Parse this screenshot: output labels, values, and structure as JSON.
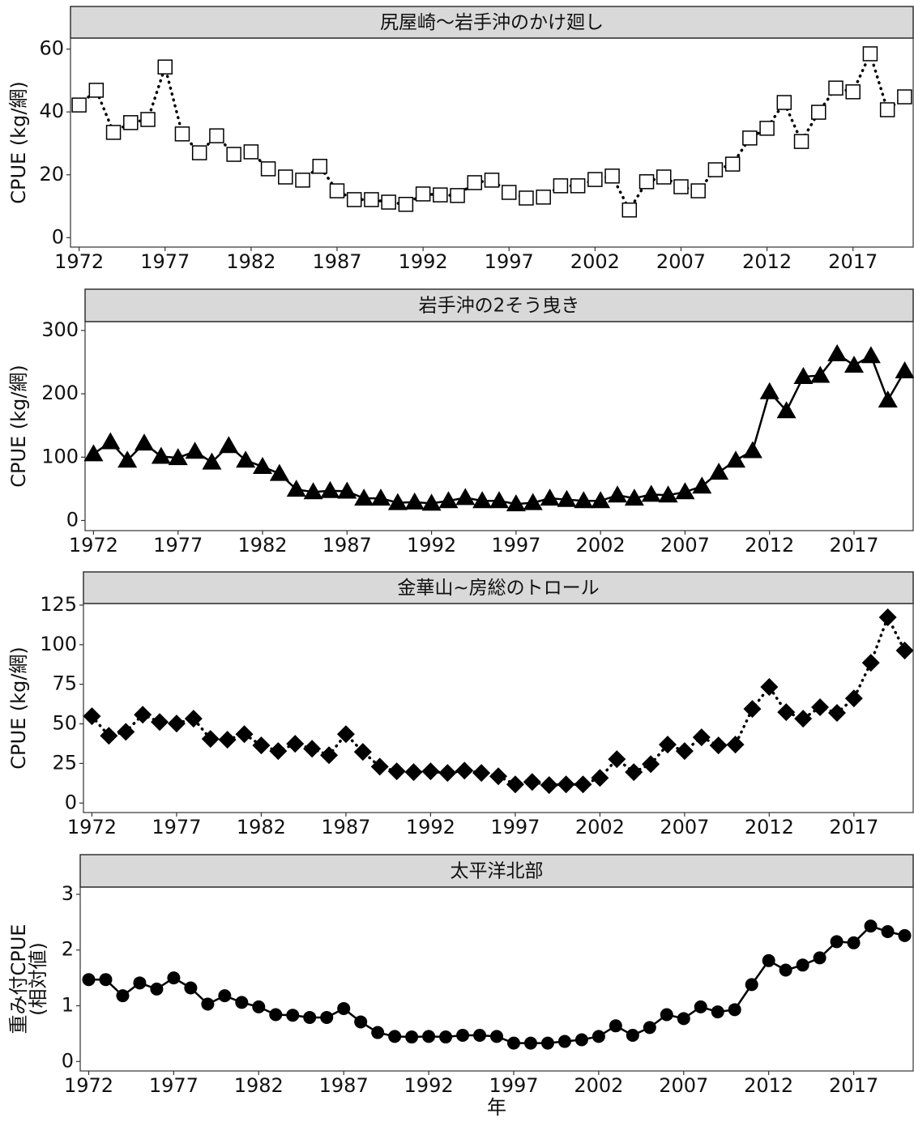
{
  "chart_data": [
    {
      "type": "line",
      "title": "尻屋崎～岩手沖のかけ廻し",
      "y_label": "CPUE (kg/網)",
      "marker": "square-open",
      "line_style": "dotted",
      "color": "#000000",
      "x": [
        1972,
        1973,
        1974,
        1975,
        1976,
        1977,
        1978,
        1979,
        1980,
        1981,
        1982,
        1983,
        1984,
        1985,
        1986,
        1987,
        1988,
        1989,
        1990,
        1991,
        1992,
        1993,
        1994,
        1995,
        1996,
        1997,
        1998,
        1999,
        2000,
        2001,
        2002,
        2003,
        2004,
        2005,
        2006,
        2007,
        2008,
        2009,
        2010,
        2011,
        2012,
        2013,
        2014,
        2015,
        2016,
        2017,
        2018,
        2019,
        2020
      ],
      "values": [
        42.2,
        46.9,
        33.5,
        36.6,
        37.6,
        54.3,
        33,
        27,
        32.4,
        26.5,
        27.3,
        21.9,
        19.3,
        18.3,
        22.7,
        14.9,
        12.1,
        12.1,
        11.3,
        10.6,
        13.9,
        13.6,
        13.4,
        17.5,
        18.3,
        14.4,
        12.6,
        12.9,
        16.5,
        16.5,
        18.5,
        19.6,
        8.8,
        17.8,
        19.3,
        16.2,
        14.9,
        21.6,
        23.4,
        31.7,
        34.8,
        43,
        30.6,
        39.9,
        47.6,
        46.4,
        58.5,
        40.7,
        44.8
      ],
      "xlim": [
        1971.5,
        2020.5
      ],
      "xticks": [
        1972,
        1977,
        1982,
        1987,
        1992,
        1997,
        2002,
        2007,
        2012,
        2017
      ],
      "ylim": [
        -3,
        63.5
      ],
      "yticks": [
        0,
        20,
        40,
        60
      ]
    },
    {
      "type": "line",
      "title": "岩手沖の2そう曳き",
      "y_label": "CPUE (kg/網)",
      "marker": "triangle",
      "line_style": "solid",
      "color": "#000000",
      "x": [
        1972,
        1973,
        1974,
        1975,
        1976,
        1977,
        1978,
        1979,
        1980,
        1981,
        1982,
        1983,
        1984,
        1985,
        1986,
        1987,
        1988,
        1989,
        1990,
        1991,
        1992,
        1993,
        1994,
        1995,
        1996,
        1997,
        1998,
        1999,
        2000,
        2001,
        2002,
        2003,
        2004,
        2005,
        2006,
        2007,
        2008,
        2009,
        2010,
        2011,
        2012,
        2013,
        2014,
        2015,
        2016,
        2017,
        2018,
        2019,
        2020
      ],
      "values": [
        105,
        124,
        95,
        122,
        101,
        99,
        109,
        92,
        118,
        95,
        85,
        74,
        49,
        45,
        47,
        46,
        35,
        35,
        28,
        29,
        27,
        31,
        36,
        31,
        31,
        26,
        28,
        35,
        33,
        31,
        31,
        40,
        35,
        41,
        40,
        45,
        54,
        76,
        95,
        110,
        203,
        173,
        227,
        229,
        263,
        245,
        260,
        190,
        236
      ],
      "xlim": [
        1971.5,
        2020.5
      ],
      "xticks": [
        1972,
        1977,
        1982,
        1987,
        1992,
        1997,
        2002,
        2007,
        2012,
        2017
      ],
      "ylim": [
        -16,
        314
      ],
      "yticks": [
        0,
        100,
        200,
        300
      ]
    },
    {
      "type": "line",
      "title": "金華山~房総のトロール",
      "y_label": "CPUE (kg/網)",
      "marker": "diamond",
      "line_style": "dotted",
      "color": "#000000",
      "x": [
        1972,
        1973,
        1974,
        1975,
        1976,
        1977,
        1978,
        1979,
        1980,
        1981,
        1982,
        1983,
        1984,
        1985,
        1986,
        1987,
        1988,
        1989,
        1990,
        1991,
        1992,
        1993,
        1994,
        1995,
        1996,
        1997,
        1998,
        1999,
        2000,
        2001,
        2002,
        2003,
        2004,
        2005,
        2006,
        2007,
        2008,
        2009,
        2010,
        2011,
        2012,
        2013,
        2014,
        2015,
        2016,
        2017,
        2018,
        2019,
        2020
      ],
      "values": [
        54.8,
        42.5,
        45,
        55.8,
        51.2,
        50.2,
        53.3,
        40.5,
        40,
        43.5,
        36.4,
        32.8,
        37.4,
        34.3,
        30.2,
        43.5,
        32.3,
        23,
        20,
        19.5,
        20,
        19,
        20.5,
        19,
        16.9,
        11.8,
        13.3,
        11.3,
        11.8,
        11.8,
        15.9,
        27.7,
        19.5,
        24.6,
        36.9,
        32.8,
        41.5,
        36.4,
        36.9,
        59.4,
        73.3,
        57.4,
        53.3,
        60.5,
        56.9,
        66.1,
        88.6,
        117.3,
        96.3
      ],
      "xlim": [
        1971.5,
        2020.5
      ],
      "xticks": [
        1972,
        1977,
        1982,
        1987,
        1992,
        1997,
        2002,
        2007,
        2012,
        2017
      ],
      "ylim": [
        -6,
        126
      ],
      "yticks": [
        0,
        25,
        50,
        75,
        100,
        125
      ]
    },
    {
      "type": "line",
      "title": "太平洋北部",
      "y_label": "重み付CPUE",
      "y_label2": "(相対値)",
      "x_label": "年",
      "marker": "circle",
      "line_style": "solid",
      "color": "#000000",
      "x": [
        1972,
        1973,
        1974,
        1975,
        1976,
        1977,
        1978,
        1979,
        1980,
        1981,
        1982,
        1983,
        1984,
        1985,
        1986,
        1987,
        1988,
        1989,
        1990,
        1991,
        1992,
        1993,
        1994,
        1995,
        1996,
        1997,
        1998,
        1999,
        2000,
        2001,
        2002,
        2003,
        2004,
        2005,
        2006,
        2007,
        2008,
        2009,
        2010,
        2011,
        2012,
        2013,
        2014,
        2015,
        2016,
        2017,
        2018,
        2019,
        2020
      ],
      "values": [
        1.47,
        1.47,
        1.18,
        1.41,
        1.3,
        1.5,
        1.32,
        1.03,
        1.18,
        1.06,
        0.98,
        0.84,
        0.83,
        0.79,
        0.79,
        0.95,
        0.71,
        0.52,
        0.45,
        0.44,
        0.45,
        0.44,
        0.47,
        0.47,
        0.45,
        0.33,
        0.33,
        0.33,
        0.36,
        0.39,
        0.45,
        0.64,
        0.47,
        0.61,
        0.84,
        0.77,
        0.98,
        0.89,
        0.93,
        1.38,
        1.81,
        1.64,
        1.73,
        1.86,
        2.15,
        2.13,
        2.43,
        2.33,
        2.26
      ],
      "xlim": [
        1971.5,
        2020.5
      ],
      "xticks": [
        1972,
        1977,
        1982,
        1987,
        1992,
        1997,
        2002,
        2007,
        2012,
        2017
      ],
      "ylim": [
        -0.17,
        3.13
      ],
      "yticks": [
        0,
        1,
        2,
        3
      ]
    }
  ]
}
